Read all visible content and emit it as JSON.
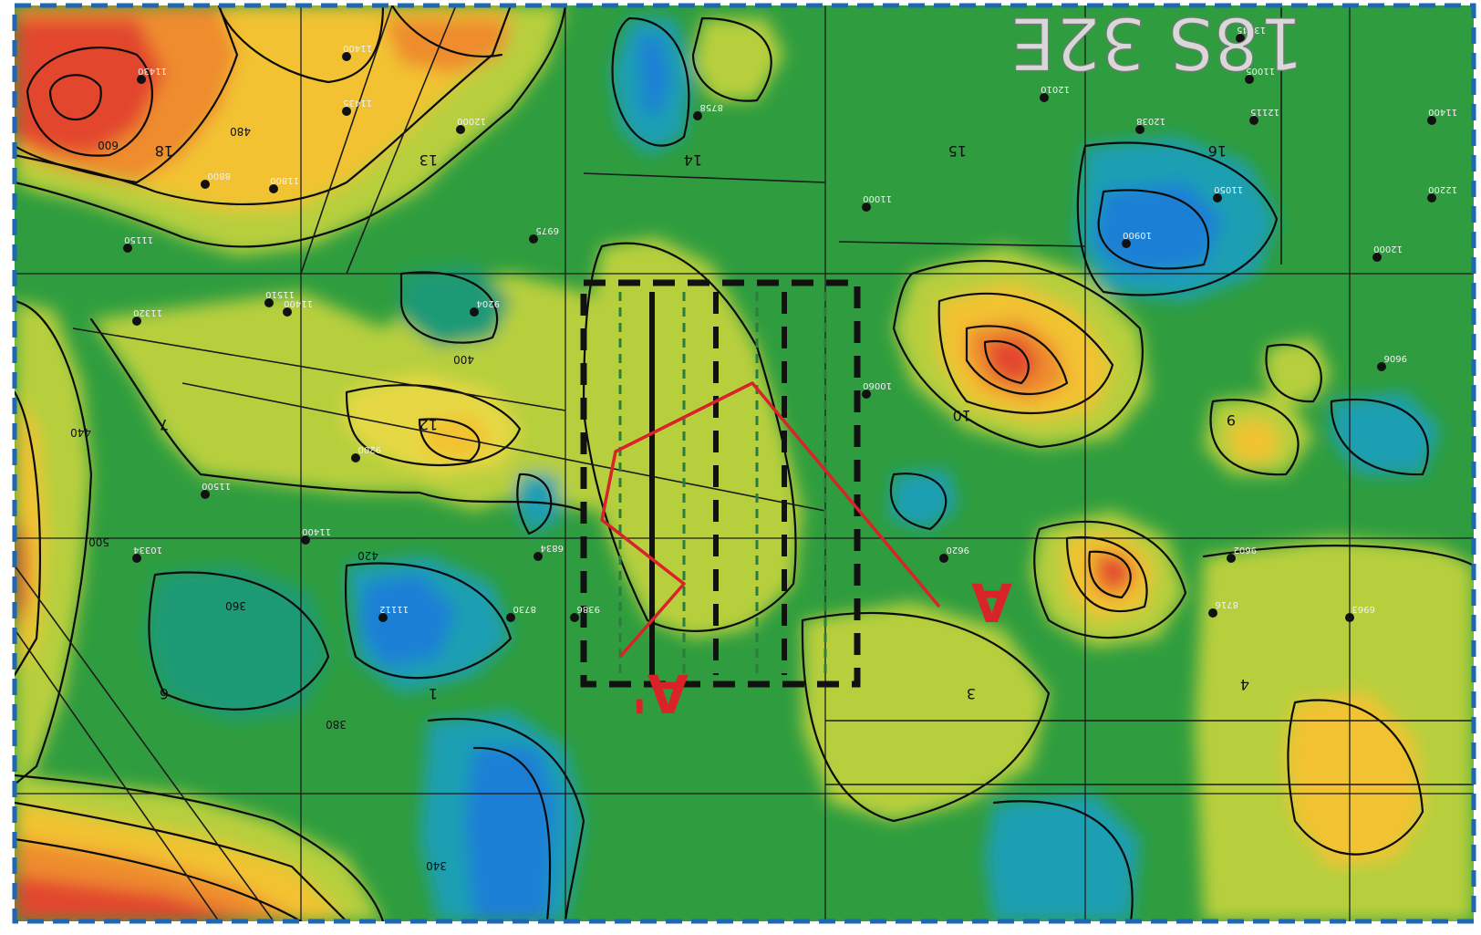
{
  "map": {
    "township_label": "18S 32E",
    "cross_section": {
      "start_label": "A",
      "end_label": "A'"
    },
    "section_numbers": [
      "18",
      "13",
      "14",
      "15",
      "16",
      "7",
      "12",
      "10",
      "9",
      "1",
      "3",
      "4",
      "6"
    ],
    "contour_labels": [
      "340",
      "360",
      "380",
      "400",
      "420",
      "440",
      "480",
      "500",
      "600"
    ],
    "well_labels": [
      "11430",
      "11400",
      "11400",
      "12000",
      "8758",
      "12200",
      "11800",
      "8800",
      "11435",
      "12010",
      "11005",
      "13445",
      "12115",
      "11150",
      "11400",
      "12038",
      "11000",
      "11050",
      "10900",
      "12000",
      "11320",
      "6975",
      "9606",
      "11510",
      "10060",
      "9200",
      "11500",
      "8716",
      "9620",
      "11400",
      "9204",
      "9602",
      "9386",
      "11112",
      "8730",
      "10334",
      "6834",
      "6963"
    ],
    "legend_note": "",
    "colors": {
      "low": "#1f7fd6",
      "mid_low": "#1f9a76",
      "mid": "#2f9d3f",
      "mid_high": "#b7cf3d",
      "high": "#f2c231",
      "very_high": "#e2462e",
      "cross_section": "#d9232a",
      "boundary_blue": "#1f66b3"
    }
  }
}
